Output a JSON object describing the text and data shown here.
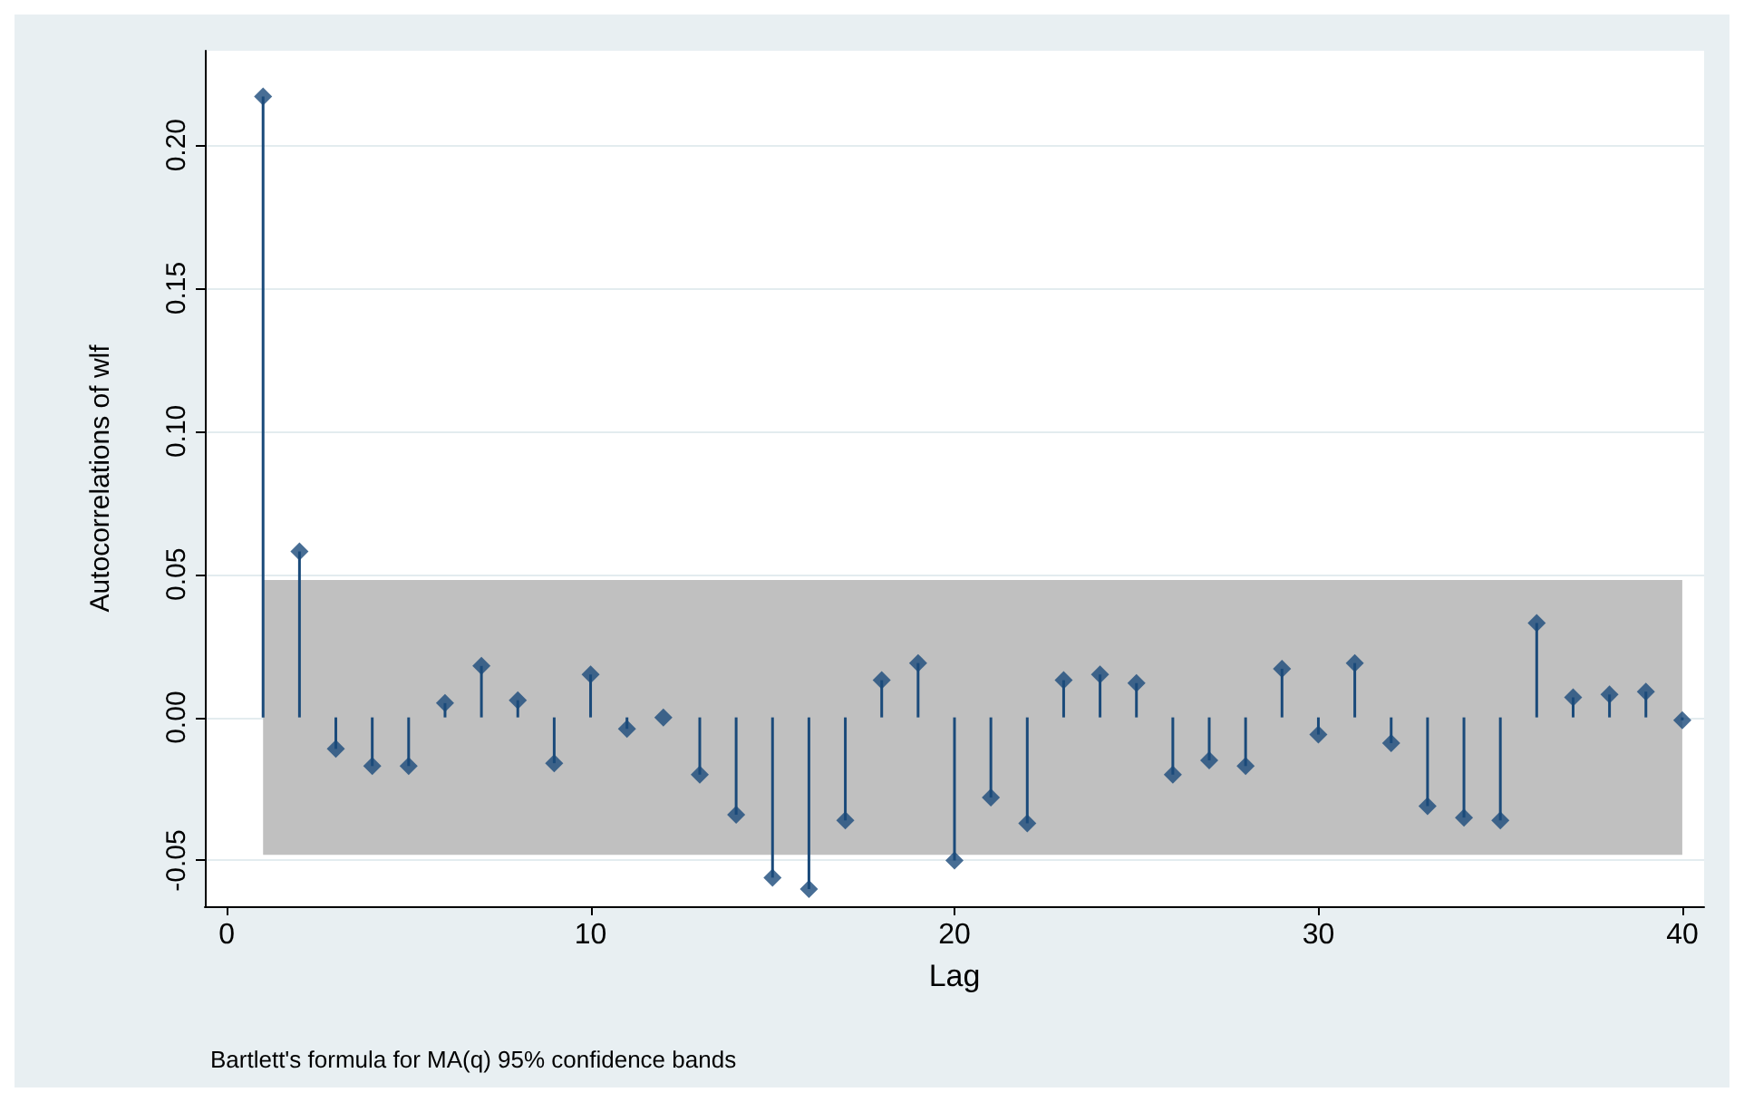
{
  "chart_data": {
    "type": "lollipop",
    "ylabel": "Autocorrelations of wlf",
    "xlabel": "Lag",
    "annotations": [
      "Bartlett's formula for MA(q) 95% confidence bands"
    ],
    "x": [
      1,
      2,
      3,
      4,
      5,
      6,
      7,
      8,
      9,
      10,
      11,
      12,
      13,
      14,
      15,
      16,
      17,
      18,
      19,
      20,
      21,
      22,
      23,
      24,
      25,
      26,
      27,
      28,
      29,
      30,
      31,
      32,
      33,
      34,
      35,
      36,
      37,
      38,
      39,
      40
    ],
    "series": [
      {
        "color": "#1a4a7a",
        "values": [
          0.217,
          0.058,
          -0.011,
          -0.017,
          -0.017,
          0.005,
          0.018,
          0.006,
          -0.016,
          0.015,
          -0.004,
          0.0,
          -0.02,
          -0.034,
          -0.056,
          -0.06,
          -0.036,
          0.013,
          0.019,
          -0.05,
          -0.028,
          -0.037,
          0.013,
          0.015,
          0.012,
          -0.02,
          -0.015,
          -0.017,
          0.017,
          -0.006,
          0.019,
          -0.009,
          -0.031,
          -0.035,
          -0.036,
          0.033,
          0.007,
          0.008,
          0.009,
          -0.001
        ]
      }
    ],
    "bands": [
      {
        "axis": "y",
        "from": -0.048,
        "to": 0.048,
        "color": "#c0c0c0"
      }
    ],
    "xlim": [
      -0.6,
      40.6
    ],
    "xticks": [
      0,
      10,
      20,
      30,
      40
    ],
    "ylim": [
      -0.066,
      0.233
    ],
    "yticks": [
      {
        "value": -0.05,
        "label": "-0.05"
      },
      {
        "value": 0,
        "label": "0.00"
      },
      {
        "value": 0.05,
        "label": "0.05"
      },
      {
        "value": 0.1,
        "label": "0.10"
      },
      {
        "value": 0.15,
        "label": "0.15"
      },
      {
        "value": 0.2,
        "label": "0.20"
      }
    ],
    "grid": "y",
    "marker": "diamond"
  }
}
